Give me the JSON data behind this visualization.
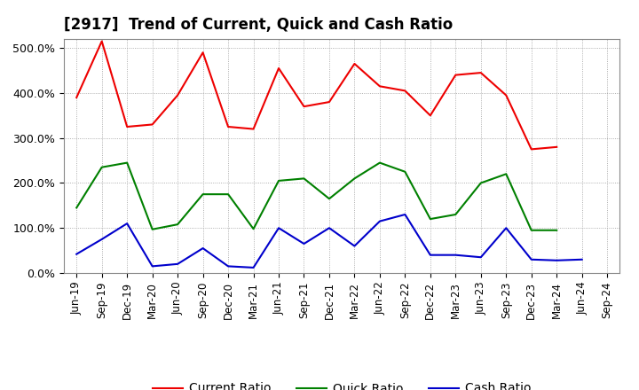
{
  "title": "[2917]  Trend of Current, Quick and Cash Ratio",
  "labels": [
    "Jun-19",
    "Sep-19",
    "Dec-19",
    "Mar-20",
    "Jun-20",
    "Sep-20",
    "Dec-20",
    "Mar-21",
    "Jun-21",
    "Sep-21",
    "Dec-21",
    "Mar-22",
    "Jun-22",
    "Sep-22",
    "Dec-22",
    "Mar-23",
    "Jun-23",
    "Sep-23",
    "Dec-23",
    "Mar-24",
    "Jun-24",
    "Sep-24"
  ],
  "current_ratio": [
    390,
    515,
    325,
    330,
    395,
    490,
    325,
    320,
    455,
    370,
    380,
    465,
    415,
    405,
    350,
    440,
    445,
    395,
    275,
    280,
    null,
    null
  ],
  "quick_ratio": [
    145,
    235,
    245,
    97,
    108,
    175,
    175,
    98,
    205,
    210,
    165,
    210,
    245,
    225,
    120,
    130,
    200,
    220,
    95,
    95,
    null,
    null
  ],
  "cash_ratio": [
    42,
    75,
    110,
    15,
    20,
    55,
    15,
    12,
    100,
    65,
    100,
    60,
    115,
    130,
    40,
    40,
    35,
    100,
    30,
    28,
    30,
    null
  ],
  "current_color": "#ee0000",
  "quick_color": "#008000",
  "cash_color": "#0000cc",
  "ylim": [
    0,
    520
  ],
  "yticks": [
    0,
    100,
    200,
    300,
    400,
    500
  ],
  "background_color": "#ffffff",
  "grid_color": "#999999",
  "legend_labels": [
    "Current Ratio",
    "Quick Ratio",
    "Cash Ratio"
  ],
  "title_fontsize": 12,
  "tick_fontsize": 8.5,
  "ytick_fontsize": 9
}
